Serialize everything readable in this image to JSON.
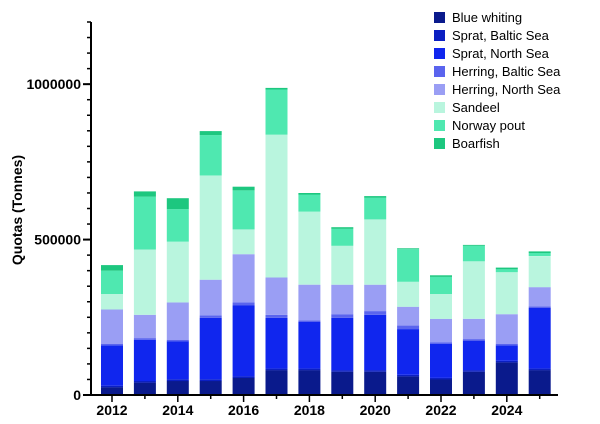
{
  "chart_data": {
    "type": "bar",
    "stacked": true,
    "title": "",
    "xlabel": "",
    "ylabel": "Quotas (Tonnes)",
    "ylim": [
      0,
      1200000
    ],
    "yticks": [
      0,
      500000,
      1000000
    ],
    "ytick_labels": [
      "0",
      "500000",
      "1000000"
    ],
    "categories": [
      "2012",
      "2013",
      "2014",
      "2015",
      "2016",
      "2017",
      "2018",
      "2019",
      "2020",
      "2021",
      "2022",
      "2023",
      "2024",
      "2025"
    ],
    "xtick_labels": [
      "2012",
      "2014",
      "2016",
      "2018",
      "2020",
      "2022",
      "2024"
    ],
    "legend_position": "top-right",
    "grid": false,
    "series": [
      {
        "name": "Blue whiting",
        "color": "#0a1a8c",
        "values": [
          25000,
          40000,
          45000,
          45000,
          55000,
          80000,
          80000,
          75000,
          75000,
          60000,
          50000,
          75000,
          105000,
          80000
        ]
      },
      {
        "name": "Sprat, Baltic Sea",
        "color": "#0b1fc2",
        "values": [
          5000,
          5000,
          5000,
          5000,
          5000,
          5000,
          5000,
          5000,
          5000,
          5000,
          5000,
          5000,
          5000,
          5000
        ]
      },
      {
        "name": "Sprat, North Sea",
        "color": "#1026ee",
        "values": [
          130000,
          133000,
          123000,
          198000,
          228000,
          163000,
          150000,
          168000,
          178000,
          147000,
          110000,
          95000,
          50000,
          195000
        ]
      },
      {
        "name": "Herring, Baltic Sea",
        "color": "#5a64ee",
        "values": [
          5000,
          5000,
          5000,
          8000,
          10000,
          10000,
          5000,
          12000,
          12000,
          12000,
          5000,
          5000,
          5000,
          5000
        ]
      },
      {
        "name": "Herring, North Sea",
        "color": "#9a9ef4",
        "values": [
          110000,
          75000,
          120000,
          115000,
          155000,
          120000,
          115000,
          95000,
          85000,
          60000,
          75000,
          65000,
          95000,
          62000
        ]
      },
      {
        "name": "Sandeel",
        "color": "#b9f5de",
        "values": [
          50000,
          210000,
          195000,
          335000,
          80000,
          460000,
          235000,
          125000,
          210000,
          80000,
          80000,
          185000,
          135000,
          100000
        ]
      },
      {
        "name": "Norway pout",
        "color": "#4fe8b0",
        "values": [
          75000,
          170000,
          105000,
          130000,
          125000,
          145000,
          55000,
          55000,
          70000,
          105000,
          55000,
          50000,
          10000,
          10000
        ]
      },
      {
        "name": "Boarfish",
        "color": "#1dc77f",
        "values": [
          18000,
          17000,
          35000,
          13000,
          12000,
          5000,
          5000,
          5000,
          5000,
          3000,
          5000,
          3000,
          5000,
          5000
        ]
      }
    ]
  }
}
